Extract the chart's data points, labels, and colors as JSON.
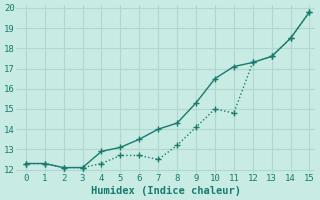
{
  "xlabel": "Humidex (Indice chaleur)",
  "x": [
    0,
    1,
    2,
    3,
    4,
    5,
    6,
    7,
    8,
    9,
    10,
    11,
    12,
    13,
    14,
    15
  ],
  "y_upper": [
    12.3,
    12.3,
    12.1,
    12.1,
    12.9,
    13.1,
    13.5,
    14.0,
    14.3,
    15.3,
    16.5,
    17.1,
    17.3,
    17.6,
    18.5,
    19.8
  ],
  "y_lower": [
    12.3,
    12.3,
    12.1,
    12.1,
    12.3,
    12.7,
    12.7,
    12.5,
    13.2,
    14.1,
    15.0,
    14.8,
    17.3,
    17.6,
    18.5,
    19.8
  ],
  "ylim": [
    12,
    20
  ],
  "xlim": [
    -0.5,
    15.3
  ],
  "yticks": [
    12,
    13,
    14,
    15,
    16,
    17,
    18,
    19,
    20
  ],
  "xticks": [
    0,
    1,
    2,
    3,
    4,
    5,
    6,
    7,
    8,
    9,
    10,
    11,
    12,
    13,
    14,
    15
  ],
  "line_color": "#1a7a6e",
  "bg_color": "#c8ebe3",
  "grid_color": "#b0d8d0",
  "marker": "+",
  "marker_size": 5,
  "linewidth": 1.0,
  "tick_fontsize": 6.5,
  "xlabel_fontsize": 7.5
}
